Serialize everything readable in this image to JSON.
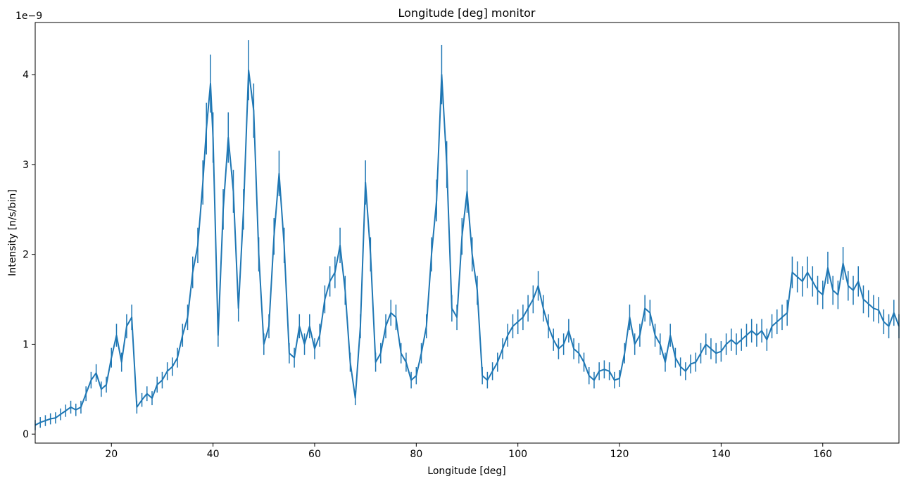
{
  "chart_data": {
    "type": "line",
    "title": "Longitude [deg] monitor",
    "xlabel": "Longitude [deg]",
    "ylabel": "Intensity [n/s/bin]",
    "offset_label": "1e−9",
    "y_scale_factor": 1e-09,
    "xlim": [
      5,
      175
    ],
    "ylim": [
      -0.1,
      4.58
    ],
    "grid": false,
    "error_bars": true,
    "x_ticks": [
      20,
      40,
      60,
      80,
      100,
      120,
      140,
      160
    ],
    "x_tick_labels": [
      "20",
      "40",
      "60",
      "80",
      "100",
      "120",
      "140",
      "160"
    ],
    "y_ticks": [
      0,
      1,
      2,
      3,
      4
    ],
    "y_tick_labels": [
      "0",
      "1",
      "2",
      "3",
      "4"
    ],
    "series_color": "#1f77b4",
    "series": [
      {
        "points": [
          [
            5.0,
            0.1
          ],
          [
            6.0,
            0.13
          ],
          [
            7.0,
            0.15
          ],
          [
            8.0,
            0.17
          ],
          [
            9.0,
            0.18
          ],
          [
            10.0,
            0.22
          ],
          [
            11.0,
            0.26
          ],
          [
            12.0,
            0.3
          ],
          [
            13.0,
            0.27
          ],
          [
            14.0,
            0.3
          ],
          [
            15.0,
            0.45
          ],
          [
            16.0,
            0.6
          ],
          [
            17.0,
            0.68
          ],
          [
            18.0,
            0.5
          ],
          [
            19.0,
            0.55
          ],
          [
            20.0,
            0.85
          ],
          [
            21.0,
            1.1
          ],
          [
            22.0,
            0.8
          ],
          [
            23.0,
            1.2
          ],
          [
            24.0,
            1.3
          ],
          [
            25.0,
            0.3
          ],
          [
            26.0,
            0.38
          ],
          [
            27.0,
            0.45
          ],
          [
            28.0,
            0.4
          ],
          [
            29.0,
            0.55
          ],
          [
            30.0,
            0.6
          ],
          [
            31.0,
            0.7
          ],
          [
            32.0,
            0.75
          ],
          [
            33.0,
            0.85
          ],
          [
            34.0,
            1.1
          ],
          [
            35.0,
            1.3
          ],
          [
            36.0,
            1.8
          ],
          [
            37.0,
            2.1
          ],
          [
            38.0,
            2.8
          ],
          [
            38.7,
            3.4
          ],
          [
            39.5,
            3.9
          ],
          [
            40.0,
            3.3
          ],
          [
            41.0,
            1.1
          ],
          [
            42.0,
            2.5
          ],
          [
            43.0,
            3.3
          ],
          [
            44.0,
            2.7
          ],
          [
            45.0,
            1.4
          ],
          [
            46.0,
            2.5
          ],
          [
            47.0,
            4.05
          ],
          [
            48.0,
            3.6
          ],
          [
            49.0,
            2.0
          ],
          [
            50.0,
            1.0
          ],
          [
            51.0,
            1.2
          ],
          [
            52.0,
            2.2
          ],
          [
            53.0,
            2.9
          ],
          [
            54.0,
            2.1
          ],
          [
            55.0,
            0.9
          ],
          [
            56.0,
            0.85
          ],
          [
            57.0,
            1.2
          ],
          [
            58.0,
            1.0
          ],
          [
            59.0,
            1.2
          ],
          [
            60.0,
            0.95
          ],
          [
            61.0,
            1.1
          ],
          [
            62.0,
            1.5
          ],
          [
            63.0,
            1.7
          ],
          [
            64.0,
            1.8
          ],
          [
            65.0,
            2.1
          ],
          [
            66.0,
            1.6
          ],
          [
            67.0,
            0.8
          ],
          [
            68.0,
            0.4
          ],
          [
            69.0,
            1.2
          ],
          [
            70.0,
            2.8
          ],
          [
            71.0,
            2.0
          ],
          [
            72.0,
            0.8
          ],
          [
            73.0,
            0.9
          ],
          [
            74.0,
            1.2
          ],
          [
            75.0,
            1.35
          ],
          [
            76.0,
            1.3
          ],
          [
            77.0,
            0.9
          ],
          [
            78.0,
            0.8
          ],
          [
            79.0,
            0.6
          ],
          [
            80.0,
            0.65
          ],
          [
            81.0,
            0.9
          ],
          [
            82.0,
            1.2
          ],
          [
            83.0,
            2.0
          ],
          [
            84.0,
            2.6
          ],
          [
            85.0,
            4.0
          ],
          [
            86.0,
            3.0
          ],
          [
            87.0,
            1.4
          ],
          [
            88.0,
            1.3
          ],
          [
            89.0,
            2.2
          ],
          [
            90.0,
            2.7
          ],
          [
            91.0,
            2.0
          ],
          [
            92.0,
            1.6
          ],
          [
            93.0,
            0.65
          ],
          [
            94.0,
            0.6
          ],
          [
            95.0,
            0.7
          ],
          [
            96.0,
            0.8
          ],
          [
            97.0,
            0.95
          ],
          [
            98.0,
            1.1
          ],
          [
            99.0,
            1.2
          ],
          [
            100.0,
            1.25
          ],
          [
            101.0,
            1.3
          ],
          [
            102.0,
            1.4
          ],
          [
            103.0,
            1.5
          ],
          [
            104.0,
            1.65
          ],
          [
            105.0,
            1.4
          ],
          [
            106.0,
            1.2
          ],
          [
            107.0,
            1.05
          ],
          [
            108.0,
            0.95
          ],
          [
            109.0,
            1.0
          ],
          [
            110.0,
            1.15
          ],
          [
            111.0,
            0.95
          ],
          [
            112.0,
            0.9
          ],
          [
            113.0,
            0.8
          ],
          [
            114.0,
            0.65
          ],
          [
            115.0,
            0.6
          ],
          [
            116.0,
            0.7
          ],
          [
            117.0,
            0.72
          ],
          [
            118.0,
            0.7
          ],
          [
            119.0,
            0.6
          ],
          [
            120.0,
            0.62
          ],
          [
            121.0,
            0.9
          ],
          [
            122.0,
            1.3
          ],
          [
            123.0,
            1.0
          ],
          [
            124.0,
            1.1
          ],
          [
            125.0,
            1.4
          ],
          [
            126.0,
            1.35
          ],
          [
            127.0,
            1.1
          ],
          [
            128.0,
            1.0
          ],
          [
            129.0,
            0.8
          ],
          [
            130.0,
            1.1
          ],
          [
            131.0,
            0.85
          ],
          [
            132.0,
            0.75
          ],
          [
            133.0,
            0.7
          ],
          [
            134.0,
            0.78
          ],
          [
            135.0,
            0.8
          ],
          [
            136.0,
            0.9
          ],
          [
            137.0,
            1.0
          ],
          [
            138.0,
            0.95
          ],
          [
            139.0,
            0.9
          ],
          [
            140.0,
            0.92
          ],
          [
            141.0,
            1.0
          ],
          [
            142.0,
            1.05
          ],
          [
            143.0,
            1.0
          ],
          [
            144.0,
            1.05
          ],
          [
            145.0,
            1.1
          ],
          [
            146.0,
            1.15
          ],
          [
            147.0,
            1.1
          ],
          [
            148.0,
            1.15
          ],
          [
            149.0,
            1.05
          ],
          [
            150.0,
            1.2
          ],
          [
            151.0,
            1.25
          ],
          [
            152.0,
            1.3
          ],
          [
            153.0,
            1.35
          ],
          [
            154.0,
            1.8
          ],
          [
            155.0,
            1.75
          ],
          [
            156.0,
            1.7
          ],
          [
            157.0,
            1.8
          ],
          [
            158.0,
            1.7
          ],
          [
            159.0,
            1.6
          ],
          [
            160.0,
            1.55
          ],
          [
            161.0,
            1.85
          ],
          [
            162.0,
            1.6
          ],
          [
            163.0,
            1.55
          ],
          [
            164.0,
            1.9
          ],
          [
            165.0,
            1.65
          ],
          [
            166.0,
            1.6
          ],
          [
            167.0,
            1.7
          ],
          [
            168.0,
            1.5
          ],
          [
            169.0,
            1.45
          ],
          [
            170.0,
            1.4
          ],
          [
            171.0,
            1.38
          ],
          [
            172.0,
            1.25
          ],
          [
            173.0,
            1.2
          ],
          [
            174.0,
            1.35
          ],
          [
            175.0,
            1.2
          ]
        ]
      }
    ]
  }
}
